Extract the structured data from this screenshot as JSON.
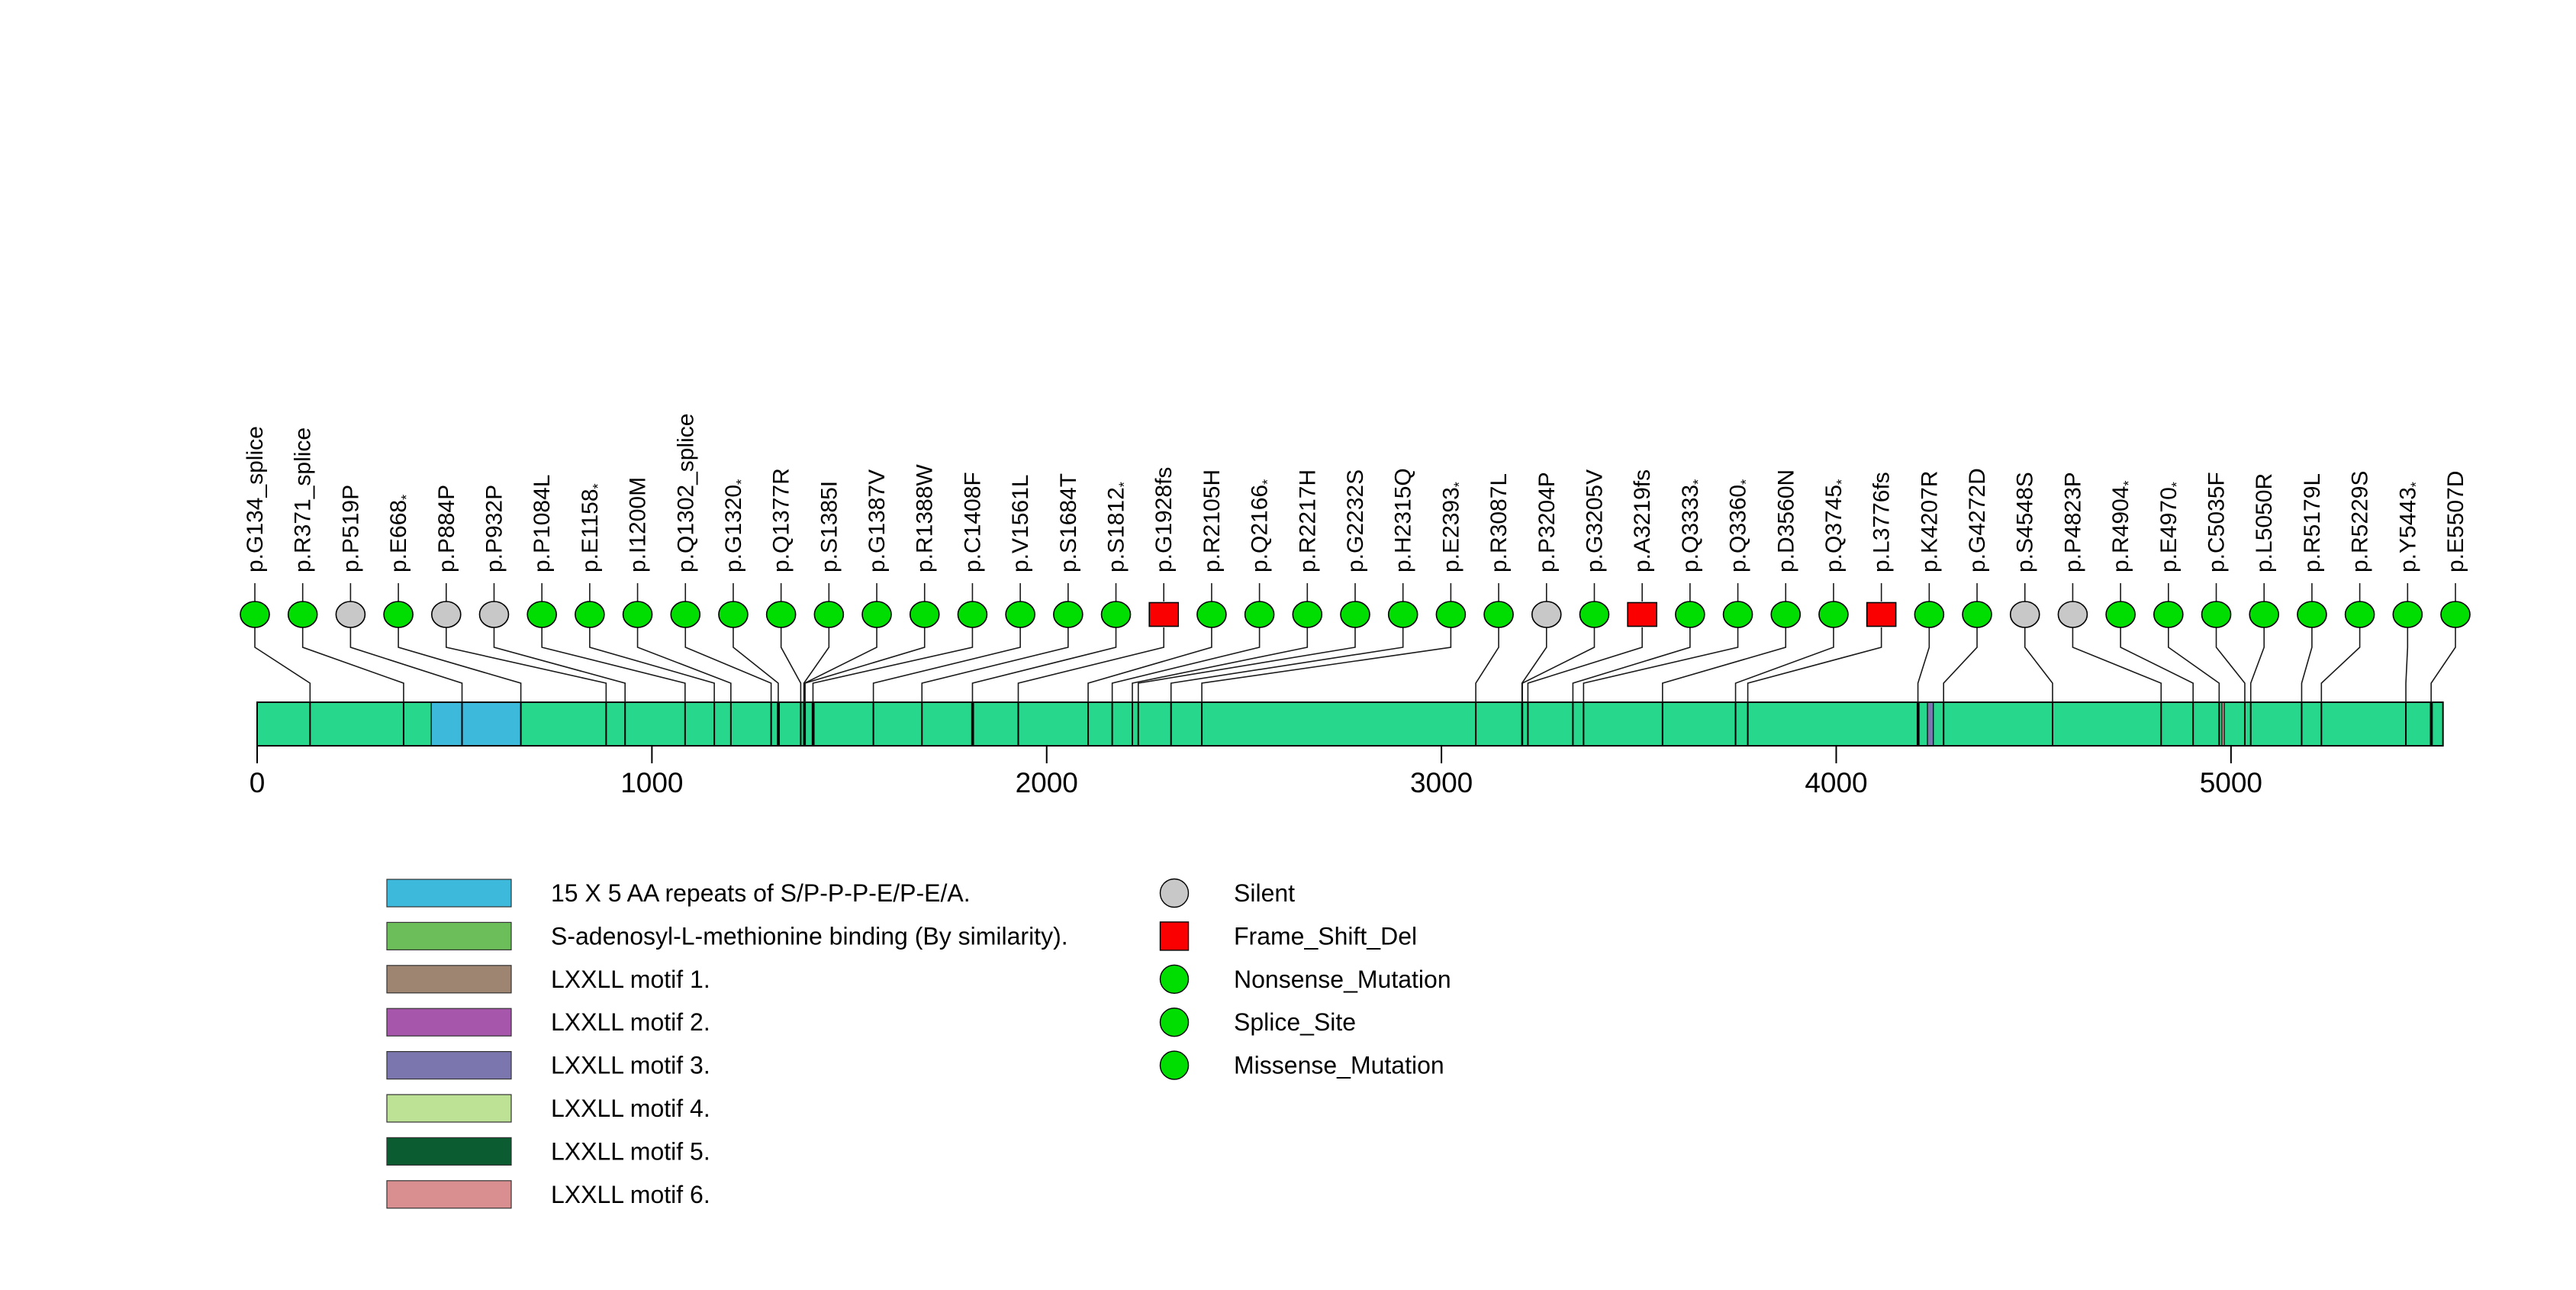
{
  "chart_data": {
    "type": "lollipop",
    "title": "",
    "protein_length_aa": 5537,
    "x_axis": {
      "ticks": [
        0,
        1000,
        2000,
        3000,
        4000,
        5000
      ],
      "max": 5537,
      "grid": false
    },
    "backbone_color": "#26d78c",
    "line_color": "#1a1a1a",
    "mutation_types": [
      {
        "label": "Silent",
        "color": "#c8c8c8",
        "shape": "circle"
      },
      {
        "label": "Frame_Shift_Del",
        "color": "#fb0000",
        "shape": "square"
      },
      {
        "label": "Nonsense_Mutation",
        "color": "#00dd00",
        "shape": "circle"
      },
      {
        "label": "Splice_Site",
        "color": "#00dd00",
        "shape": "circle"
      },
      {
        "label": "Missense_Mutation",
        "color": "#00dd00",
        "shape": "circle"
      }
    ],
    "domains": [
      {
        "label": "15 X 5 AA repeats of S/P-P-P-E/P-E/A.",
        "color": "#3cb9db",
        "start": 441,
        "end": 668
      },
      {
        "label": "S-adenosyl-L-methionine binding (By similarity).",
        "color": "#6cbe5b",
        "start": 5505,
        "end": 5510
      },
      {
        "label": "LXXLL motif 1.",
        "color": "#9d8571",
        "start": 1318,
        "end": 1322
      },
      {
        "label": "LXXLL motif 2.",
        "color": "#a757ab",
        "start": 1810,
        "end": 1814
      },
      {
        "label": "LXXLL motif 3.",
        "color": "#7b76ad",
        "start": 4231,
        "end": 4246
      },
      {
        "label": "LXXLL motif 4.",
        "color": "#bee295",
        "start": 1406,
        "end": 1410
      },
      {
        "label": "LXXLL motif 5.",
        "color": "#0b5d31",
        "start": 4205,
        "end": 4209
      },
      {
        "label": "LXXLL motif 6.",
        "color": "#d98f8f",
        "start": 4977,
        "end": 4983
      }
    ],
    "mutations": [
      {
        "label": "p.G134_splice",
        "pos": 134,
        "type": "Splice_Site"
      },
      {
        "label": "p.R371_splice",
        "pos": 371,
        "type": "Splice_Site"
      },
      {
        "label": "p.P519P",
        "pos": 519,
        "type": "Silent"
      },
      {
        "label": "p.E668*",
        "pos": 668,
        "type": "Nonsense_Mutation"
      },
      {
        "label": "p.P884P",
        "pos": 884,
        "type": "Silent"
      },
      {
        "label": "p.P932P",
        "pos": 932,
        "type": "Silent"
      },
      {
        "label": "p.P1084L",
        "pos": 1084,
        "type": "Missense_Mutation"
      },
      {
        "label": "p.E1158*",
        "pos": 1158,
        "type": "Nonsense_Mutation"
      },
      {
        "label": "p.I1200M",
        "pos": 1200,
        "type": "Missense_Mutation"
      },
      {
        "label": "p.Q1302_splice",
        "pos": 1302,
        "type": "Splice_Site"
      },
      {
        "label": "p.G1320*",
        "pos": 1320,
        "type": "Nonsense_Mutation"
      },
      {
        "label": "p.Q1377R",
        "pos": 1377,
        "type": "Missense_Mutation"
      },
      {
        "label": "p.S1385I",
        "pos": 1385,
        "type": "Missense_Mutation"
      },
      {
        "label": "p.G1387V",
        "pos": 1387,
        "type": "Missense_Mutation"
      },
      {
        "label": "p.R1388W",
        "pos": 1388,
        "type": "Missense_Mutation"
      },
      {
        "label": "p.C1408F",
        "pos": 1408,
        "type": "Missense_Mutation"
      },
      {
        "label": "p.V1561L",
        "pos": 1561,
        "type": "Missense_Mutation"
      },
      {
        "label": "p.S1684T",
        "pos": 1684,
        "type": "Missense_Mutation"
      },
      {
        "label": "p.S1812*",
        "pos": 1812,
        "type": "Nonsense_Mutation"
      },
      {
        "label": "p.G1928fs",
        "pos": 1928,
        "type": "Frame_Shift_Del"
      },
      {
        "label": "p.R2105H",
        "pos": 2105,
        "type": "Missense_Mutation"
      },
      {
        "label": "p.Q2166*",
        "pos": 2166,
        "type": "Nonsense_Mutation"
      },
      {
        "label": "p.R2217H",
        "pos": 2217,
        "type": "Missense_Mutation"
      },
      {
        "label": "p.G2232S",
        "pos": 2232,
        "type": "Missense_Mutation"
      },
      {
        "label": "p.H2315Q",
        "pos": 2315,
        "type": "Missense_Mutation"
      },
      {
        "label": "p.E2393*",
        "pos": 2393,
        "type": "Nonsense_Mutation"
      },
      {
        "label": "p.R3087L",
        "pos": 3087,
        "type": "Missense_Mutation"
      },
      {
        "label": "p.P3204P",
        "pos": 3204,
        "type": "Silent"
      },
      {
        "label": "p.G3205V",
        "pos": 3205,
        "type": "Missense_Mutation"
      },
      {
        "label": "p.A3219fs",
        "pos": 3219,
        "type": "Frame_Shift_Del"
      },
      {
        "label": "p.Q3333*",
        "pos": 3333,
        "type": "Nonsense_Mutation"
      },
      {
        "label": "p.Q3360*",
        "pos": 3360,
        "type": "Nonsense_Mutation"
      },
      {
        "label": "p.D3560N",
        "pos": 3560,
        "type": "Missense_Mutation"
      },
      {
        "label": "p.Q3745*",
        "pos": 3745,
        "type": "Nonsense_Mutation"
      },
      {
        "label": "p.L3776fs",
        "pos": 3776,
        "type": "Frame_Shift_Del"
      },
      {
        "label": "p.K4207R",
        "pos": 4207,
        "type": "Missense_Mutation"
      },
      {
        "label": "p.G4272D",
        "pos": 4272,
        "type": "Missense_Mutation"
      },
      {
        "label": "p.S4548S",
        "pos": 4548,
        "type": "Silent"
      },
      {
        "label": "p.P4823P",
        "pos": 4823,
        "type": "Silent"
      },
      {
        "label": "p.R4904*",
        "pos": 4904,
        "type": "Nonsense_Mutation"
      },
      {
        "label": "p.E4970*",
        "pos": 4970,
        "type": "Nonsense_Mutation"
      },
      {
        "label": "p.C5035F",
        "pos": 5035,
        "type": "Missense_Mutation"
      },
      {
        "label": "p.L5050R",
        "pos": 5050,
        "type": "Missense_Mutation"
      },
      {
        "label": "p.R5179L",
        "pos": 5179,
        "type": "Missense_Mutation"
      },
      {
        "label": "p.R5229S",
        "pos": 5229,
        "type": "Missense_Mutation"
      },
      {
        "label": "p.Y5443*",
        "pos": 5443,
        "type": "Nonsense_Mutation"
      },
      {
        "label": "p.E5507D",
        "pos": 5507,
        "type": "Missense_Mutation"
      }
    ]
  }
}
